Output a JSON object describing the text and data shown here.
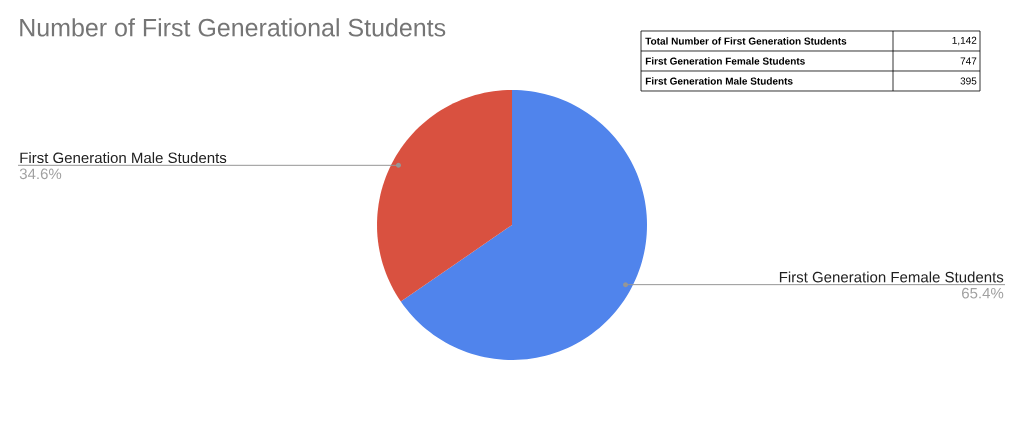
{
  "chart_data": {
    "type": "pie",
    "title": "Number of First Generational Students",
    "categories": [
      "First Generation Female Students",
      "First Generation Male Students"
    ],
    "values": [
      65.4,
      34.6
    ],
    "colors": [
      "#5084ec",
      "#d95140"
    ],
    "value_labels": [
      "65.4%",
      "34.6%"
    ],
    "annotations": [
      "Total Number of First Generation Students",
      "1,142",
      "747",
      "395"
    ]
  }
}
